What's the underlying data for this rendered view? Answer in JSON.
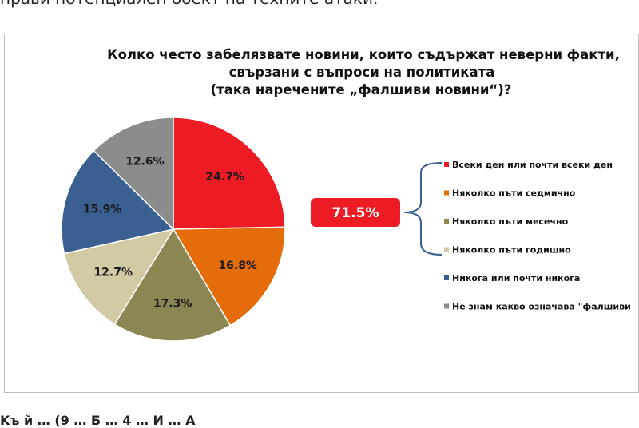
{
  "page": {
    "top_text": "прави потенциален обект на техните атаки.",
    "bottom_text": "Kъ й  …  (9  …  Б  …  4  …  И  …  A"
  },
  "colors": {
    "red": "#ed1c24",
    "orange": "#e46c0a",
    "olive": "#8c8653",
    "beige": "#d2c9a5",
    "blue": "#3a5f91",
    "gray": "#8c8c8c",
    "bracket": "#3a5f91",
    "badge": "#ed1c24"
  },
  "chart_data": {
    "type": "pie",
    "title": [
      "Колко често забелязвате новини, които съдържат неверни факти,",
      "свързани с въпроси на политиката",
      "(така наречените „фалшиви новини“)?"
    ],
    "slices": [
      {
        "name": "Всеки ден или почти всеки ден",
        "value": 24.7,
        "label": "24.7%",
        "color": "#ed1c24"
      },
      {
        "name": "Няколко пъти седмично",
        "value": 16.8,
        "label": "16.8%",
        "color": "#e46c0a"
      },
      {
        "name": "Няколко пъти месечно",
        "value": 17.3,
        "label": "17.3%",
        "color": "#8c8653"
      },
      {
        "name": "Няколко пъти годишно",
        "value": 12.7,
        "label": "12.7%",
        "color": "#d2c9a5"
      },
      {
        "name": "Никога или почти никога",
        "value": 15.9,
        "label": "15.9%",
        "color": "#3a5f91"
      },
      {
        "name": "Не знам какво означава \"фалшиви",
        "value": 12.6,
        "label": "12.6%",
        "color": "#8c8c8c"
      }
    ],
    "start_angle_deg": 0,
    "direction": "clockwise",
    "legend_position": "right",
    "annotation": {
      "text": "71.5%",
      "covers": [
        "Всеки ден или почти всеки ден",
        "Няколко пъти седмично",
        "Няколко пъти месечно",
        "Няколко пъти годишно"
      ]
    }
  }
}
